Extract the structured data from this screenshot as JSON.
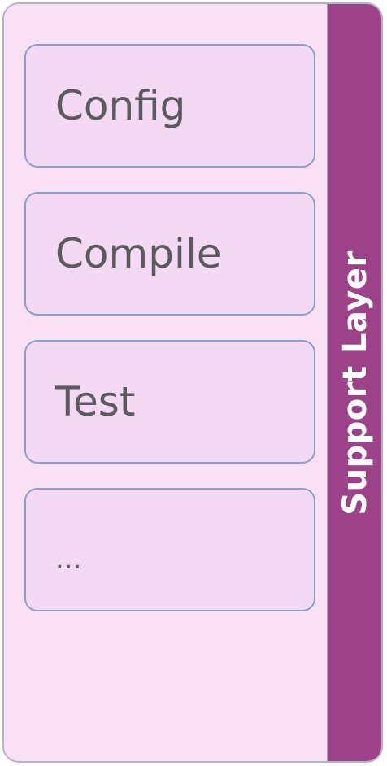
{
  "support_layer": {
    "label": "Support Layer"
  },
  "stages": [
    {
      "label": "Config"
    },
    {
      "label": "Compile"
    },
    {
      "label": "Test"
    },
    {
      "label": "..."
    }
  ],
  "colors": {
    "panel_fill": "#f9e0f4",
    "stage_fill": "#f4d9f4",
    "stage_border": "#8c9fcb",
    "support_layer_fill": "#9b4289",
    "text": "#5b5a5f"
  }
}
